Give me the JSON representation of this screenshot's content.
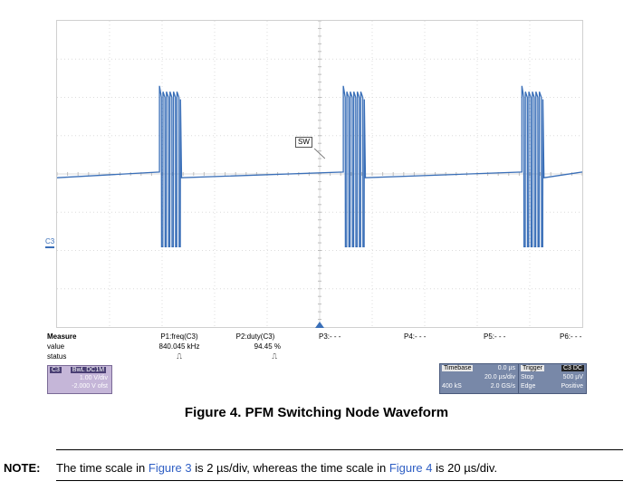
{
  "chart_data": {
    "type": "line",
    "title": "",
    "xlabel": "",
    "ylabel": "",
    "grid": true,
    "divisions": {
      "x": 10,
      "y": 8
    },
    "series": [
      {
        "name": "SW",
        "color": "#3a6fb8",
        "description_points": {
          "baseline_low_div": 3.9,
          "baseline_high_div": 4.05,
          "pulse_top_div": 6.3,
          "pulse_bottom_div": 2.1,
          "bursts_start_div": [
            1.95,
            5.45,
            8.85
          ],
          "pulses_per_burst": 6,
          "burst_width_div": 0.4
        }
      }
    ],
    "channel_label": "C3",
    "trace_label": "SW"
  },
  "measure": {
    "header": "Measure",
    "row_labels": [
      "value",
      "status"
    ],
    "params": [
      {
        "name": "P1:freq(C3)",
        "value": "840.045 kHz",
        "status": "⎍"
      },
      {
        "name": "P2:duty(C3)",
        "value": "94.45 %",
        "status": "⎍"
      },
      {
        "name": "P3:- - -",
        "value": "",
        "status": ""
      },
      {
        "name": "P4:- - -",
        "value": "",
        "status": ""
      },
      {
        "name": "P5:- - -",
        "value": "",
        "status": ""
      },
      {
        "name": "P6:- - -",
        "value": "",
        "status": ""
      }
    ]
  },
  "channel_box": {
    "tag": "C3",
    "mode": "BwL DC1M",
    "volts_div": "1.00 V/div",
    "offset": "-2.000 V ofst"
  },
  "timebase": {
    "label": "Timebase",
    "delay": "0.0 µs",
    "time_div": "20.0 µs/div",
    "samples": "400 kS",
    "sample_rate": "2.0 GS/s"
  },
  "trigger": {
    "label": "Trigger",
    "tag": "C3 DC",
    "mode": "Stop",
    "level": "500 µV",
    "type": "Edge",
    "slope": "Positive"
  },
  "caption": "Figure 4. PFM Switching Node Waveform",
  "note": {
    "label": "NOTE:",
    "text1": "The time scale in ",
    "link1": "Figure 3",
    "text2": " is 2 µs/div, whereas the time scale in ",
    "link2": "Figure 4",
    "text3": " is 20 µs/div."
  }
}
